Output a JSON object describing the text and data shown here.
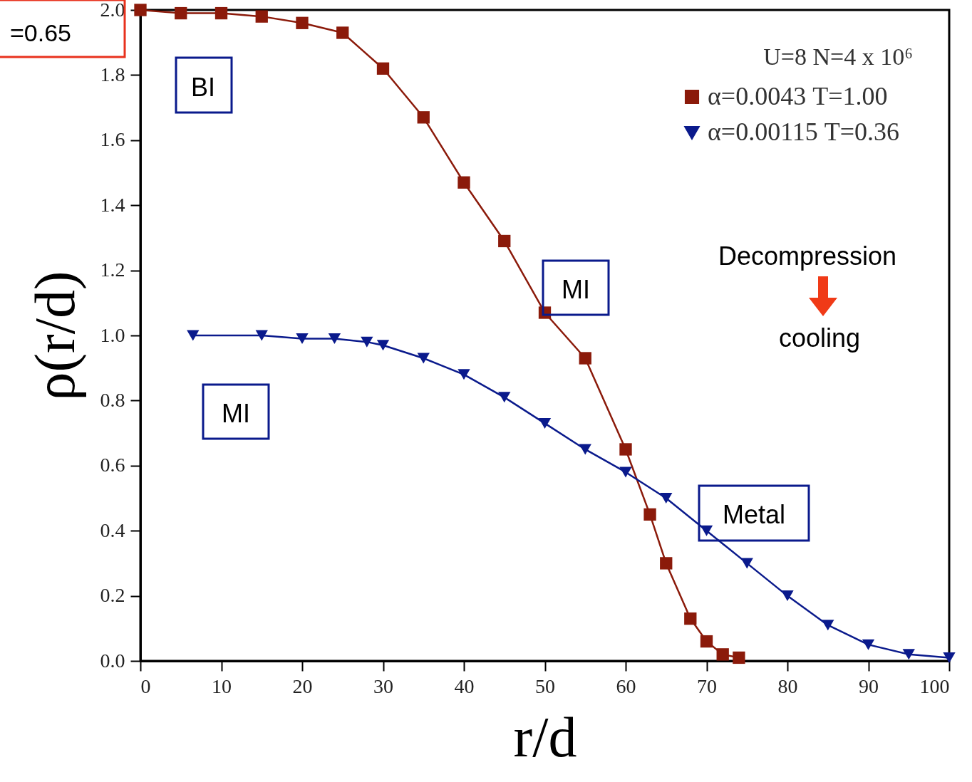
{
  "chart_data": {
    "type": "line",
    "xlabel": "r/d",
    "ylabel": "ρ(r/d)",
    "legend_title": "U=8 N=4 x 10⁶",
    "legend": "top right",
    "grid": false,
    "line_style": "solid",
    "xlim": [
      0,
      100
    ],
    "xticks": [
      0,
      10,
      20,
      30,
      40,
      50,
      60,
      70,
      80,
      90,
      100
    ],
    "ylim": [
      0,
      2
    ],
    "yticks": [
      {
        "value": 0,
        "label": "0.0"
      },
      {
        "value": 0.2,
        "label": "0.2"
      },
      {
        "value": 0.4,
        "label": "0.4"
      },
      {
        "value": 0.6,
        "label": "0.6"
      },
      {
        "value": 0.8,
        "label": "0.8"
      },
      {
        "value": 1,
        "label": "1.0"
      },
      {
        "value": 1.2,
        "label": "1.2"
      },
      {
        "value": 1.4,
        "label": "1.4"
      },
      {
        "value": 1.6,
        "label": "1.6"
      },
      {
        "value": 1.8,
        "label": "1.8"
      },
      {
        "value": 2,
        "label": "2.0"
      }
    ],
    "series": [
      {
        "name": "α=0.0043     T=1.00",
        "color": "#8b1a0a",
        "marker": "square",
        "x": [
          0,
          5,
          10,
          15,
          20,
          25,
          30,
          35,
          40,
          45,
          50,
          55,
          60,
          63,
          65,
          68,
          70,
          72,
          74
        ],
        "values": [
          2.0,
          1.99,
          1.99,
          1.98,
          1.96,
          1.93,
          1.82,
          1.67,
          1.47,
          1.29,
          1.07,
          0.93,
          0.65,
          0.45,
          0.3,
          0.13,
          0.06,
          0.02,
          0.01
        ]
      },
      {
        "name": "α=0.00115   T=0.36",
        "color": "#0a1a8c",
        "marker": "triangle-down",
        "x": [
          6.5,
          15,
          20,
          24,
          28,
          30,
          35,
          40,
          45,
          50,
          55,
          60,
          65,
          70,
          75,
          80,
          85,
          90,
          95,
          100
        ],
        "values": [
          1.0,
          1.0,
          0.99,
          0.99,
          0.98,
          0.97,
          0.93,
          0.88,
          0.81,
          0.73,
          0.65,
          0.58,
          0.5,
          0.4,
          0.3,
          0.2,
          0.11,
          0.05,
          0.02,
          0.01
        ]
      }
    ],
    "annotations": [
      "BI",
      "MI",
      "MI",
      "Metal",
      "Decompression",
      "cooling",
      "=0.65"
    ]
  }
}
